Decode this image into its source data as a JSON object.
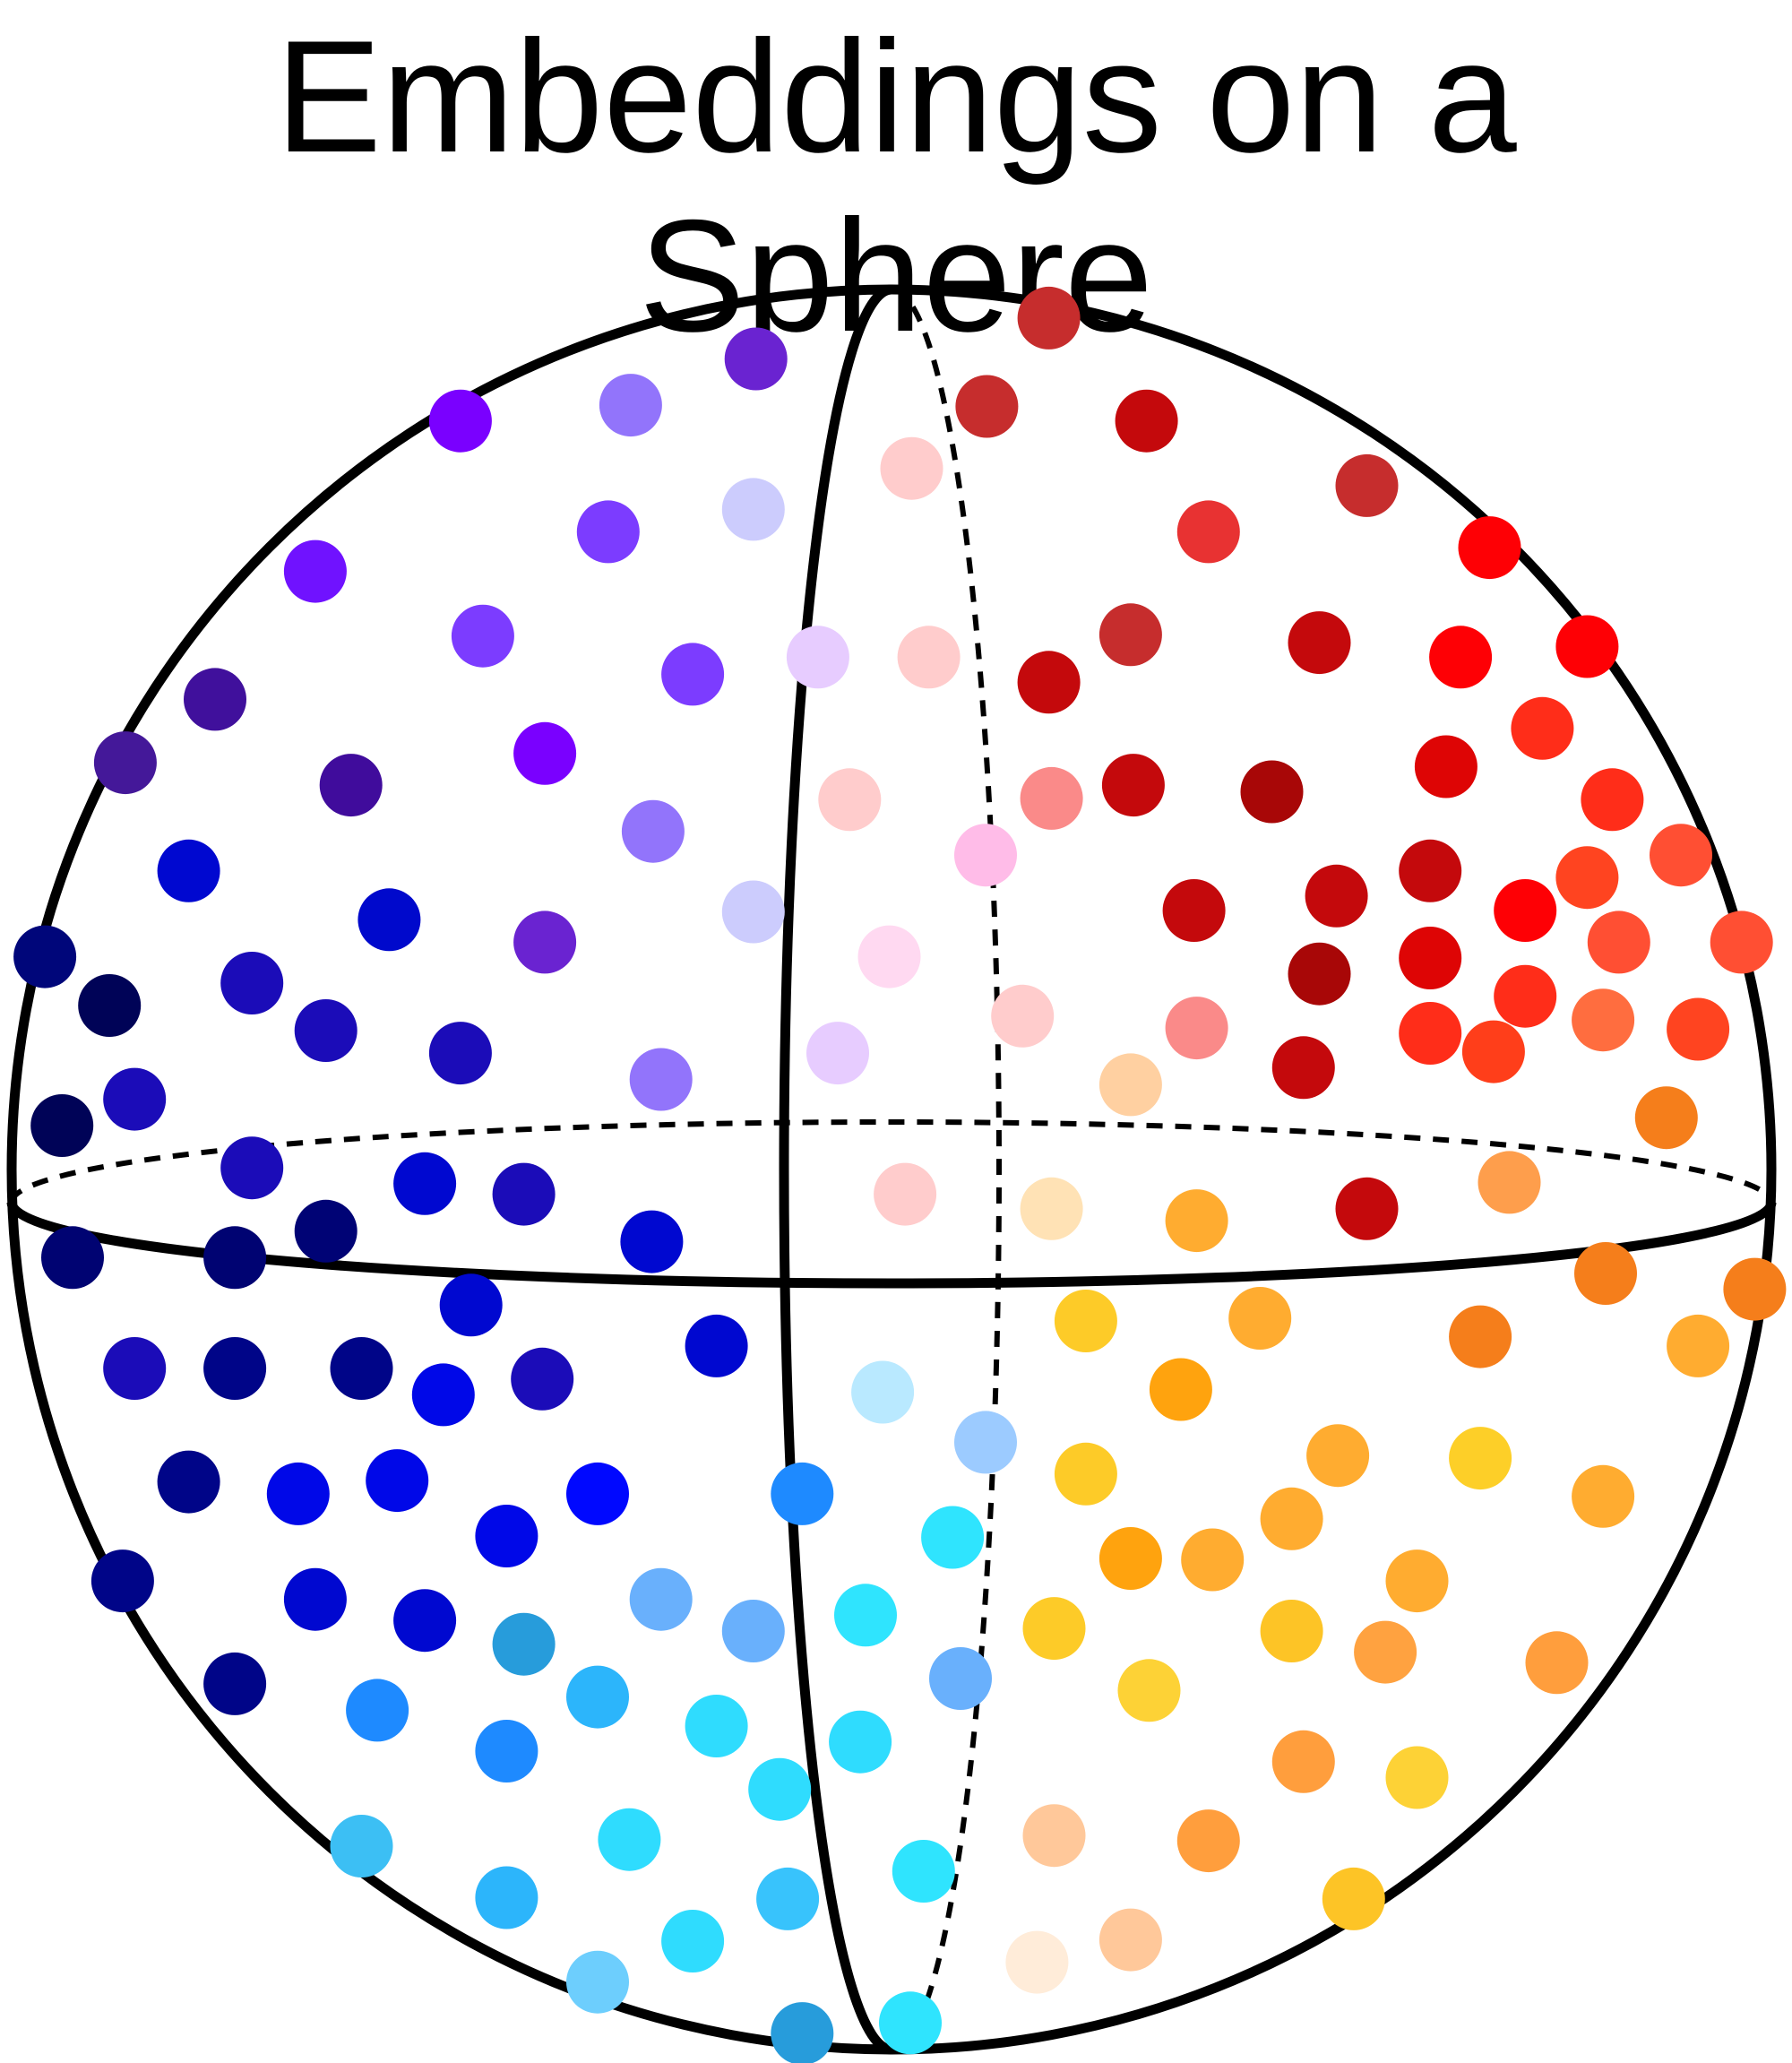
{
  "title": "Embeddings on a Sphere",
  "diagram": {
    "outline_color": "#000000",
    "outline_style": "sphere with equator and meridian; back halves dashed",
    "point_style": "filled circles colored by cluster",
    "clusters": [
      {
        "name": "top-left",
        "hue": "purple-blue",
        "sample_colors": [
          "#7a00ff",
          "#6d2fe8",
          "#3f1ea6",
          "#1a0cb8",
          "#000ad0"
        ]
      },
      {
        "name": "top-right",
        "hue": "red",
        "sample_colors": [
          "#c4090c",
          "#ff0a05",
          "#ff3a1b",
          "#ff5432",
          "#c84040"
        ]
      },
      {
        "name": "bottom-left",
        "hue": "navy-to-cyan",
        "sample_colors": [
          "#000a7a",
          "#0508d8",
          "#1e86ff",
          "#30cfff",
          "#6fcfff"
        ]
      },
      {
        "name": "bottom-right",
        "hue": "orange-yellow",
        "sample_colors": [
          "#fdc426",
          "#ffa52c",
          "#fb8d1b",
          "#ffc89a",
          "#ffecd9"
        ]
      },
      {
        "name": "center-pale",
        "hue": "pastel",
        "sample_colors": [
          "#ffcccc",
          "#e7ccff",
          "#ccccff",
          "#ffcce8"
        ]
      }
    ]
  }
}
